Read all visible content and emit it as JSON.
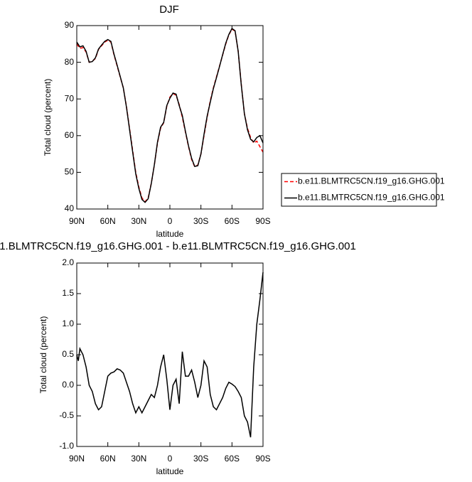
{
  "chart_data": [
    {
      "type": "line",
      "title": "DJF",
      "xlabel": "latitude",
      "ylabel": "Total cloud (percent)",
      "x": [
        90,
        87,
        84,
        81,
        78,
        75,
        72,
        69,
        66,
        63,
        60,
        57,
        54,
        51,
        48,
        45,
        42,
        39,
        36,
        33,
        30,
        27,
        24,
        21,
        18,
        15,
        12,
        9,
        6,
        3,
        0,
        -3,
        -6,
        -9,
        -12,
        -15,
        -18,
        -21,
        -24,
        -27,
        -30,
        -33,
        -36,
        -39,
        -42,
        -45,
        -48,
        -51,
        -54,
        -57,
        -60,
        -63,
        -66,
        -69,
        -72,
        -75,
        -78,
        -81,
        -84,
        -87,
        -90
      ],
      "xlim": [
        90,
        -90
      ],
      "xticks": [
        {
          "value": 90,
          "label": "90N"
        },
        {
          "value": 60,
          "label": "60N"
        },
        {
          "value": 30,
          "label": "30N"
        },
        0,
        {
          "value": -30,
          "label": "30S"
        },
        {
          "value": -60,
          "label": "60S"
        },
        {
          "value": -90,
          "label": "90S"
        }
      ],
      "ylim": [
        40,
        90
      ],
      "yticks": [
        40,
        50,
        60,
        70,
        80,
        90
      ],
      "legend": "right",
      "series": [
        {
          "name": "b.e11.BLMTRC5CN.f19_g16.GHG.001",
          "color": "#ff0000",
          "dashed": true,
          "values": [
            85,
            83.8,
            84,
            82.8,
            80,
            80.3,
            81,
            83.5,
            84.5,
            85.5,
            86,
            85.5,
            82,
            79,
            76,
            73,
            68,
            62,
            56,
            50,
            46,
            43,
            42,
            43,
            47,
            52,
            58,
            62,
            63.5,
            68,
            70.5,
            71.5,
            71,
            68.5,
            65,
            61,
            57,
            53.5,
            51.5,
            52,
            55,
            60,
            65,
            69.5,
            73,
            76,
            79,
            82,
            85,
            87.5,
            89,
            88.5,
            83,
            74,
            66,
            62,
            59.5,
            58,
            58.5,
            57,
            55.5
          ]
        },
        {
          "name": "b.e11.BLMTRC5CN.f19_g16.GHG.001",
          "color": "#000000",
          "dashed": false,
          "values": [
            85.5,
            84.2,
            84.5,
            83,
            80,
            80.2,
            81.2,
            83.6,
            84.7,
            85.7,
            86.2,
            85.7,
            82.2,
            79.2,
            76.1,
            73,
            67.8,
            61.7,
            55.6,
            49.6,
            45.6,
            42.6,
            41.8,
            42.8,
            46.9,
            52.1,
            58.2,
            62.3,
            63.6,
            68.2,
            70.2,
            71.6,
            71.3,
            68.2,
            65.5,
            61.2,
            57.2,
            53.8,
            51.6,
            51.8,
            55,
            60.4,
            65.3,
            69.1,
            72.8,
            75.8,
            78.9,
            82.1,
            85.2,
            87.6,
            89.2,
            88.6,
            83,
            73.8,
            66,
            61.6,
            59,
            58.3,
            59.5,
            60,
            58
          ]
        }
      ]
    },
    {
      "type": "line",
      "title": "1.BLMTRC5CN.f19_g16.GHG.001 - b.e11.BLMTRC5CN.f19_g16.GHG.001",
      "xlabel": "latitude",
      "ylabel": "Total cloud (percent)",
      "x": [
        90,
        88.5,
        87,
        84,
        81,
        78,
        75,
        72,
        69,
        66,
        63,
        60,
        57,
        54,
        51,
        48,
        45,
        42,
        39,
        36,
        33,
        30,
        27,
        24,
        21,
        18,
        15,
        12,
        9,
        6,
        3,
        0,
        -3,
        -6,
        -9,
        -12,
        -15,
        -18,
        -21,
        -24,
        -27,
        -30,
        -33,
        -36,
        -39,
        -42,
        -45,
        -48,
        -51,
        -54,
        -57,
        -60,
        -63,
        -66,
        -69,
        -72,
        -75,
        -78,
        -81,
        -84,
        -87,
        -90
      ],
      "xlim": [
        90,
        -90
      ],
      "xticks": [
        {
          "value": 90,
          "label": "90N"
        },
        {
          "value": 60,
          "label": "60N"
        },
        {
          "value": 30,
          "label": "30N"
        },
        0,
        {
          "value": -30,
          "label": "30S"
        },
        {
          "value": -60,
          "label": "60S"
        },
        {
          "value": -90,
          "label": "90S"
        }
      ],
      "ylim": [
        -1,
        2
      ],
      "yticks": [
        {
          "value": -1,
          "label": "-1.0"
        },
        -0.5,
        {
          "value": 0,
          "label": "0.0"
        },
        0.5,
        {
          "value": 1,
          "label": "1.0"
        },
        1.5,
        {
          "value": 2,
          "label": "2.0"
        }
      ],
      "series": [
        {
          "color": "#000000",
          "dashed": false,
          "values": [
            0.5,
            0.4,
            0.6,
            0.5,
            0.3,
            0,
            -0.1,
            -0.3,
            -0.4,
            -0.35,
            -0.1,
            0.15,
            0.2,
            0.22,
            0.27,
            0.25,
            0.2,
            0.05,
            -0.1,
            -0.3,
            -0.45,
            -0.35,
            -0.45,
            -0.35,
            -0.25,
            -0.15,
            -0.2,
            0,
            0.3,
            0.5,
            0.1,
            -0.4,
            0,
            0.1,
            -0.3,
            0.55,
            0.15,
            0.15,
            0.25,
            0.05,
            -0.2,
            0,
            0.4,
            0.3,
            -0.15,
            -0.35,
            -0.4,
            -0.3,
            -0.2,
            -0.05,
            0.05,
            0.02,
            -0.02,
            -0.1,
            -0.2,
            -0.5,
            -0.6,
            -0.85,
            0.3,
            1,
            1.4,
            1.85
          ]
        }
      ]
    }
  ]
}
